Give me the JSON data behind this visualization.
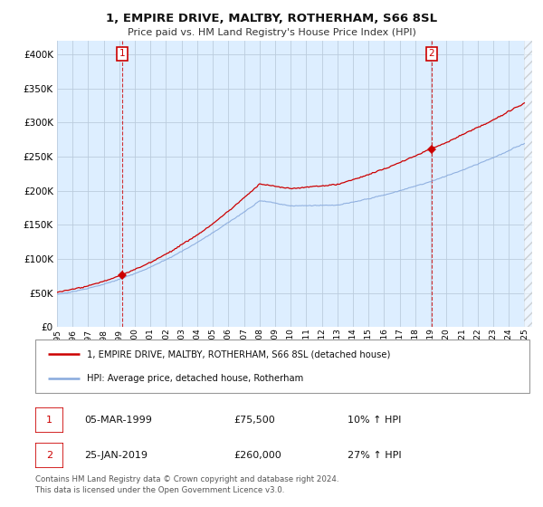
{
  "title": "1, EMPIRE DRIVE, MALTBY, ROTHERHAM, S66 8SL",
  "subtitle": "Price paid vs. HM Land Registry's House Price Index (HPI)",
  "property_label": "1, EMPIRE DRIVE, MALTBY, ROTHERHAM, S66 8SL (detached house)",
  "hpi_label": "HPI: Average price, detached house, Rotherham",
  "transaction1_date": "05-MAR-1999",
  "transaction1_price": "£75,500",
  "transaction1_hpi": "10% ↑ HPI",
  "transaction2_date": "25-JAN-2019",
  "transaction2_price": "£260,000",
  "transaction2_hpi": "27% ↑ HPI",
  "footer": "Contains HM Land Registry data © Crown copyright and database right 2024.\nThis data is licensed under the Open Government Licence v3.0.",
  "property_color": "#cc0000",
  "hpi_color": "#88aadd",
  "annotation_box_color": "#cc0000",
  "chart_bg_color": "#ddeeff",
  "ylim": [
    0,
    420000
  ],
  "yticks": [
    0,
    50000,
    100000,
    150000,
    200000,
    250000,
    300000,
    350000,
    400000
  ],
  "background_color": "#ffffff",
  "grid_color": "#bbccdd",
  "t1_year": 1999.17,
  "t1_price": 75500,
  "t2_year": 2019.04,
  "t2_price": 260000
}
